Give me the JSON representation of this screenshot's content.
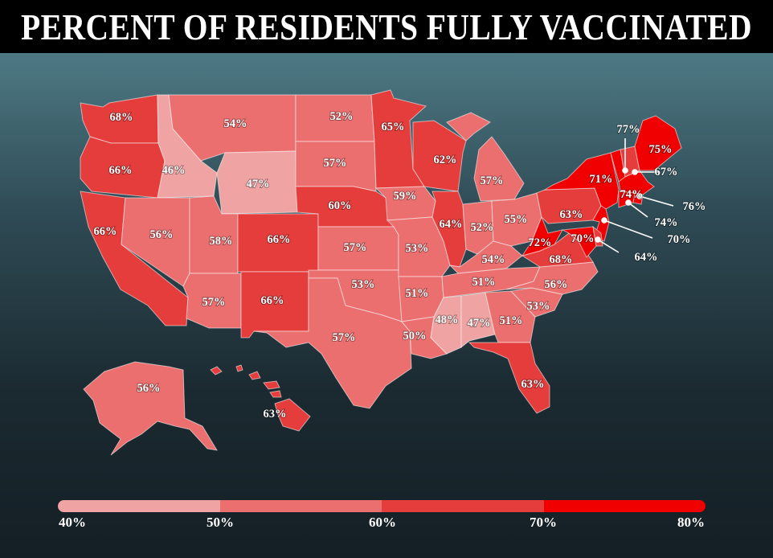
{
  "title": "PERCENT OF RESIDENTS FULLY VACCINATED",
  "colors": {
    "40-50": "#f0a3a3",
    "50-60": "#ec6f6f",
    "60-70": "#e53c3c",
    "70-80": "#f00000",
    "background_top": "#4e7a85",
    "background_bottom": "#141f25"
  },
  "legend": {
    "ticks": [
      "40%",
      "50%",
      "60%",
      "70%",
      "80%"
    ],
    "bins": [
      "40-50",
      "50-60",
      "60-70",
      "70-80"
    ]
  },
  "states": [
    {
      "id": "WA",
      "value": 68,
      "label": "68%"
    },
    {
      "id": "OR",
      "value": 66,
      "label": "66%"
    },
    {
      "id": "CA",
      "value": 66,
      "label": "66%"
    },
    {
      "id": "ID",
      "value": 46,
      "label": "46%"
    },
    {
      "id": "NV",
      "value": 56,
      "label": "56%"
    },
    {
      "id": "MT",
      "value": 54,
      "label": "54%"
    },
    {
      "id": "WY",
      "value": 47,
      "label": "47%"
    },
    {
      "id": "UT",
      "value": 58,
      "label": "58%"
    },
    {
      "id": "AZ",
      "value": 57,
      "label": "57%"
    },
    {
      "id": "CO",
      "value": 66,
      "label": "66%"
    },
    {
      "id": "NM",
      "value": 66,
      "label": "66%"
    },
    {
      "id": "ND",
      "value": 52,
      "label": "52%"
    },
    {
      "id": "SD",
      "value": 57,
      "label": "57%"
    },
    {
      "id": "NE",
      "value": 60,
      "label": "60%"
    },
    {
      "id": "KS",
      "value": 57,
      "label": "57%"
    },
    {
      "id": "OK",
      "value": 53,
      "label": "53%"
    },
    {
      "id": "TX",
      "value": 57,
      "label": "57%"
    },
    {
      "id": "MN",
      "value": 65,
      "label": "65%"
    },
    {
      "id": "IA",
      "value": 59,
      "label": "59%"
    },
    {
      "id": "MO",
      "value": 53,
      "label": "53%"
    },
    {
      "id": "AR",
      "value": 51,
      "label": "51%"
    },
    {
      "id": "LA",
      "value": 50,
      "label": "50%"
    },
    {
      "id": "WI",
      "value": 62,
      "label": "62%"
    },
    {
      "id": "IL",
      "value": 64,
      "label": "64%"
    },
    {
      "id": "MI",
      "value": 57,
      "label": "57%"
    },
    {
      "id": "IN",
      "value": 52,
      "label": "52%"
    },
    {
      "id": "OH",
      "value": 55,
      "label": "55%"
    },
    {
      "id": "KY",
      "value": 54,
      "label": "54%"
    },
    {
      "id": "TN",
      "value": 51,
      "label": "51%"
    },
    {
      "id": "MS",
      "value": 48,
      "label": "48%"
    },
    {
      "id": "AL",
      "value": 47,
      "label": "47%"
    },
    {
      "id": "GA",
      "value": 51,
      "label": "51%"
    },
    {
      "id": "FL",
      "value": 63,
      "label": "63%"
    },
    {
      "id": "SC",
      "value": 53,
      "label": "53%"
    },
    {
      "id": "NC",
      "value": 56,
      "label": "56%"
    },
    {
      "id": "VA",
      "value": 68,
      "label": "68%"
    },
    {
      "id": "WV",
      "value": 72,
      "label": "72%"
    },
    {
      "id": "PA",
      "value": 63,
      "label": "63%"
    },
    {
      "id": "NY",
      "value": 71,
      "label": "71%"
    },
    {
      "id": "VT",
      "value": 77,
      "label": "77%"
    },
    {
      "id": "NH",
      "value": 67,
      "label": "67%"
    },
    {
      "id": "ME",
      "value": 75,
      "label": "75%"
    },
    {
      "id": "MA",
      "value": 74,
      "label": "74%"
    },
    {
      "id": "RI",
      "value": 76,
      "label": "76%"
    },
    {
      "id": "CT",
      "value": 74,
      "label": "74%"
    },
    {
      "id": "NJ",
      "value": 70,
      "label": "70%"
    },
    {
      "id": "MD",
      "value": 70,
      "label": "70%"
    },
    {
      "id": "DE",
      "value": 64,
      "label": "64%"
    },
    {
      "id": "AK",
      "value": 56,
      "label": "56%"
    },
    {
      "id": "HI",
      "value": 63,
      "label": "63%"
    }
  ]
}
